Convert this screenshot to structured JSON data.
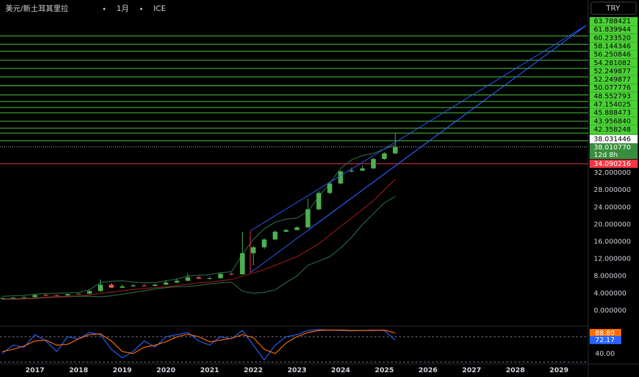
{
  "header": {
    "symbol": "美元/新土耳其里拉",
    "interval": "1月",
    "exchange": "ICE",
    "currency": "TRY"
  },
  "chart_data": {
    "type": "candlestick",
    "xlim": [
      2016.2,
      2029.67
    ],
    "xticks": [
      2017,
      2018,
      2019,
      2020,
      2021,
      2022,
      2023,
      2024,
      2025,
      2026,
      2027,
      2028,
      2029
    ],
    "ylim": [
      -3.03,
      72.13
    ],
    "yticks": [
      {
        "value": 0,
        "label": "0.000000"
      },
      {
        "value": 4,
        "label": "4.000000"
      },
      {
        "value": 8,
        "label": "8.000000"
      },
      {
        "value": 12,
        "label": "12.000000"
      },
      {
        "value": 16,
        "label": "16.000000"
      },
      {
        "value": 20,
        "label": "20.000000"
      },
      {
        "value": 24,
        "label": "24.000000"
      },
      {
        "value": 28,
        "label": "28.000000"
      },
      {
        "value": 32,
        "label": "32.000000"
      }
    ],
    "up_color": "#4caf50",
    "down_color": "#ef5350",
    "candles": {
      "x": [
        2016.25,
        2016.5,
        2016.75,
        2017.0,
        2017.25,
        2017.5,
        2017.75,
        2018.0,
        2018.25,
        2018.5,
        2018.75,
        2019.0,
        2019.25,
        2019.5,
        2019.75,
        2020.0,
        2020.25,
        2020.5,
        2020.75,
        2021.0,
        2021.25,
        2021.5,
        2021.75,
        2022.0,
        2022.25,
        2022.5,
        2022.75,
        2023.0,
        2023.25,
        2023.5,
        2023.75,
        2024.0,
        2024.25,
        2024.5,
        2024.75,
        2025.0,
        2025.25
      ],
      "open": [
        2.85,
        2.9,
        3.0,
        3.1,
        3.6,
        3.55,
        3.5,
        3.8,
        3.9,
        4.5,
        6.0,
        5.3,
        5.6,
        5.8,
        5.7,
        6.0,
        6.5,
        6.9,
        7.7,
        7.4,
        7.5,
        8.5,
        8.4,
        13.3,
        14.7,
        16.5,
        18.3,
        18.7,
        19.3,
        23.5,
        27.3,
        29.5,
        32.3,
        32.5,
        33.0,
        35.2,
        36.5
      ],
      "high": [
        3.0,
        3.1,
        3.2,
        3.7,
        3.8,
        3.7,
        3.9,
        4.0,
        4.9,
        7.2,
        6.4,
        6.0,
        6.2,
        6.1,
        6.2,
        7.0,
        7.4,
        8.6,
        8.0,
        7.9,
        8.8,
        8.8,
        18.3,
        15.0,
        16.8,
        18.6,
        18.9,
        19.6,
        26.0,
        27.8,
        30.0,
        32.6,
        33.2,
        33.7,
        35.5,
        36.8,
        41.2
      ],
      "low": [
        2.8,
        2.85,
        2.95,
        3.05,
        3.4,
        3.45,
        3.45,
        3.7,
        3.85,
        4.4,
        5.2,
        5.2,
        5.5,
        5.6,
        5.6,
        5.9,
        6.4,
        6.8,
        7.3,
        7.2,
        7.4,
        8.2,
        8.3,
        10.5,
        14.3,
        16.3,
        18.2,
        18.6,
        19.2,
        23.3,
        27.0,
        29.3,
        32.1,
        32.4,
        32.9,
        35.0,
        36.3
      ],
      "close": [
        2.9,
        3.0,
        3.1,
        3.6,
        3.55,
        3.5,
        3.8,
        3.9,
        4.5,
        6.0,
        5.3,
        5.6,
        5.8,
        5.7,
        6.0,
        6.5,
        6.9,
        7.7,
        7.4,
        7.5,
        8.5,
        8.4,
        13.3,
        14.7,
        16.5,
        18.3,
        18.7,
        19.3,
        23.5,
        27.3,
        29.5,
        32.3,
        32.5,
        33.0,
        35.2,
        36.5,
        38.01077
      ]
    },
    "upper_band": {
      "color": "#2e7d4f",
      "values": [
        3.3,
        3.4,
        3.5,
        3.8,
        3.9,
        4.0,
        4.1,
        4.2,
        4.8,
        6.5,
        6.8,
        6.9,
        6.6,
        6.4,
        6.5,
        6.9,
        7.3,
        8.0,
        8.2,
        8.3,
        8.8,
        9.0,
        13,
        16.5,
        19,
        20.5,
        21.2,
        21.5,
        23,
        26.5,
        29.5,
        33,
        35,
        36,
        36.5,
        37.5,
        38.5
      ]
    },
    "lower_band": {
      "color": "#2e7d4f",
      "values": [
        2.6,
        2.6,
        2.7,
        2.8,
        3.0,
        3.1,
        3.2,
        3.3,
        3.3,
        3.2,
        3.4,
        3.8,
        4.2,
        4.6,
        5.0,
        5.3,
        5.5,
        5.6,
        5.8,
        6.2,
        6.4,
        6.6,
        4.5,
        4.0,
        4.2,
        4.8,
        6.5,
        8.0,
        10.5,
        11.5,
        12.5,
        14.5,
        17,
        20,
        22.5,
        25,
        26.5
      ]
    },
    "moving_average": {
      "color": "#b71c1c",
      "values": [
        2.7,
        2.75,
        2.8,
        2.9,
        3.1,
        3.2,
        3.3,
        3.4,
        3.6,
        4.0,
        4.3,
        4.6,
        4.9,
        5.1,
        5.3,
        5.5,
        5.8,
        6.1,
        6.4,
        6.6,
        6.9,
        7.2,
        8.0,
        8.7,
        9.5,
        10.5,
        11.5,
        12.5,
        14,
        15.5,
        17.5,
        19.5,
        21.5,
        23.5,
        25.5,
        28,
        30.5
      ]
    },
    "levels": {
      "color": "#4cd137",
      "values": [
        63.788421,
        61.839944,
        {
          "value": 60.23352,
          "label": "60.233520"
        },
        58.144346,
        56.250846,
        54.281082,
        52.249877,
        52.249877,
        50.077776,
        48.552793,
        47.154025,
        45.888473,
        {
          "value": 43.95684,
          "label": "43.956840"
        },
        42.358248,
        41.225912,
        39.426363
      ]
    },
    "last_price": 38.031446,
    "close_price": {
      "value": 38.01077,
      "label": "38.010770"
    },
    "countdown": "12d 8h",
    "red_level": {
      "value": 34.090216,
      "color": "#f23645"
    },
    "oscillator": {
      "ylim": [
        12,
        100
      ],
      "yticks": [
        {
          "value": 40,
          "label": "40.00"
        }
      ],
      "bands": [
        80,
        20
      ],
      "k": {
        "color": "#2962ff",
        "values": [
          40,
          60,
          55,
          85,
          70,
          45,
          80,
          75,
          90,
          85,
          50,
          30,
          45,
          70,
          55,
          80,
          85,
          90,
          70,
          60,
          80,
          75,
          95,
          60,
          25,
          60,
          80,
          85,
          95,
          97,
          96,
          95,
          94,
          95,
          96,
          95,
          72.17
        ]
      },
      "d": {
        "color": "#ff6d00",
        "values": [
          45,
          50,
          58,
          70,
          72,
          60,
          62,
          75,
          85,
          87,
          70,
          45,
          40,
          55,
          60,
          68,
          80,
          86,
          80,
          68,
          72,
          76,
          85,
          78,
          50,
          40,
          65,
          80,
          90,
          95,
          96,
          96,
          95,
          95,
          95,
          96,
          88.8
        ],
        "value_labels": [
          null,
          null,
          null,
          null,
          null,
          null,
          null,
          null,
          null,
          null,
          null,
          null,
          null,
          null,
          null,
          null,
          null,
          null,
          null,
          null,
          null,
          null,
          null,
          null,
          null,
          null,
          null,
          null,
          null,
          null,
          null,
          null,
          null,
          null,
          null,
          null,
          "88.80"
        ]
      }
    }
  }
}
